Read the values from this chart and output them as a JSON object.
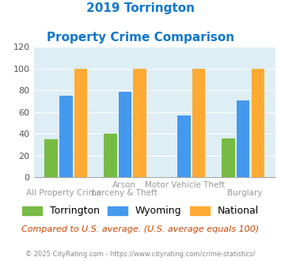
{
  "title_line1": "2019 Torrington",
  "title_line2": "Property Crime Comparison",
  "top_labels": [
    "",
    "Arson",
    "Motor Vehicle Theft",
    ""
  ],
  "bot_labels": [
    "All Property Crime",
    "Larceny & Theft",
    "",
    "Burglary"
  ],
  "torrington": [
    35,
    40,
    0,
    36
  ],
  "wyoming": [
    75,
    79,
    57,
    71
  ],
  "national": [
    100,
    100,
    100,
    100
  ],
  "color_torrington": "#77bb44",
  "color_wyoming": "#4499ee",
  "color_national": "#ffaa33",
  "ylim": [
    0,
    120
  ],
  "yticks": [
    0,
    20,
    40,
    60,
    80,
    100,
    120
  ],
  "background_color": "#ddeef5",
  "note": "Compared to U.S. average. (U.S. average equals 100)",
  "footer": "© 2025 CityRating.com - https://www.cityrating.com/crime-statistics/",
  "title_color": "#1177cc",
  "note_color": "#cc4400",
  "footer_color": "#888888",
  "label_color": "#999999"
}
